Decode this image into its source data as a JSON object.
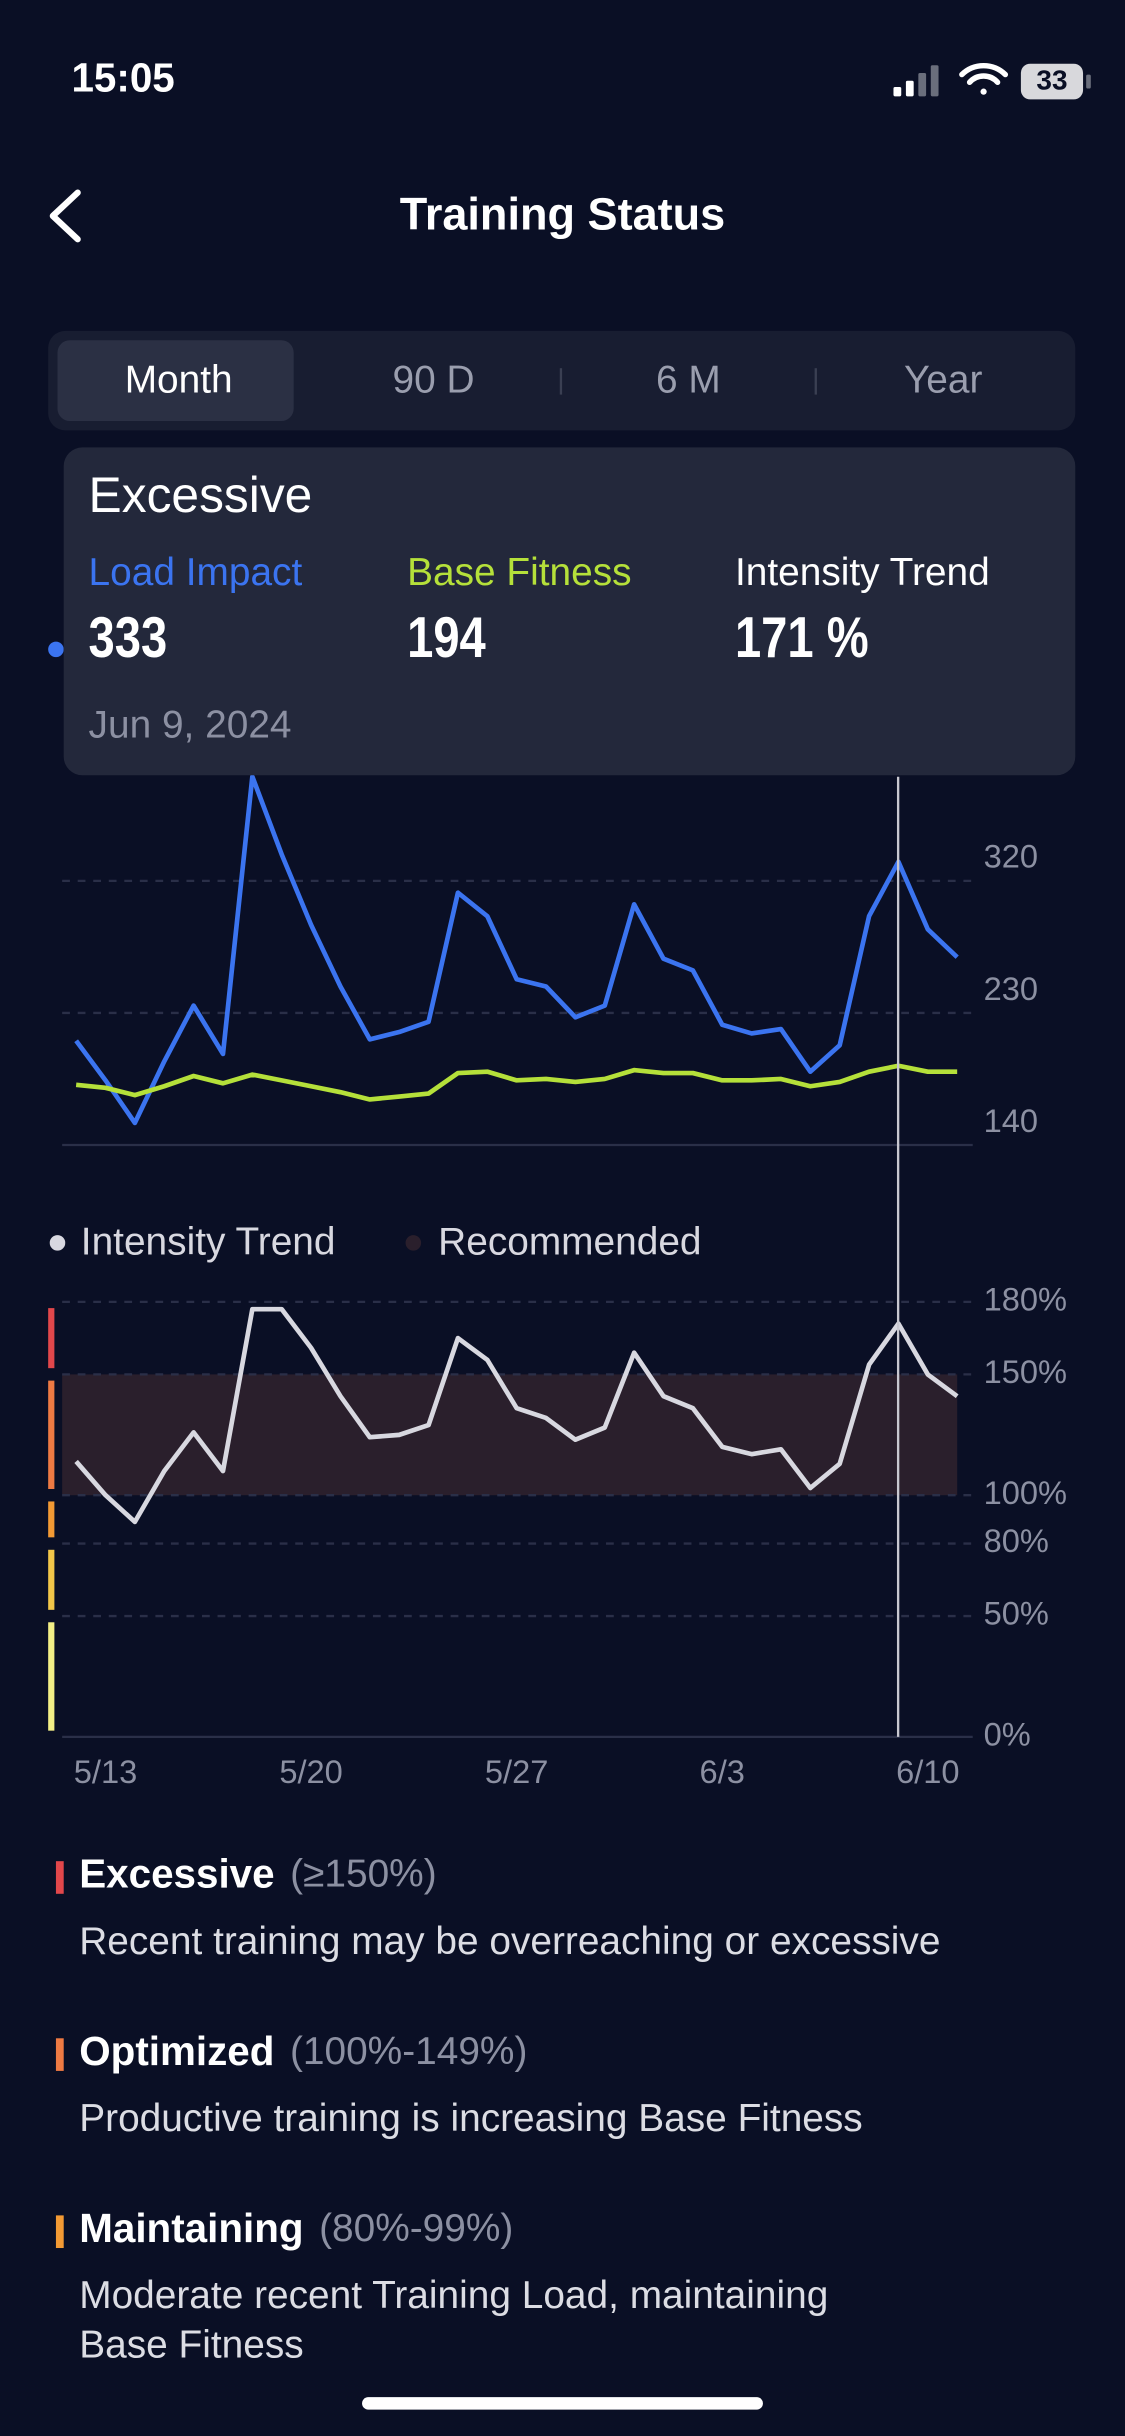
{
  "status_bar": {
    "time": "15:05",
    "battery": "33"
  },
  "header": {
    "title": "Training Status"
  },
  "tabs": {
    "items": [
      "Month",
      "90 D",
      "6 M",
      "Year"
    ],
    "active": "Month"
  },
  "tooltip": {
    "title": "Excessive",
    "intensity": "171 %",
    "date": "Jun 9, 2024"
  },
  "load_chart": {
    "type": "line",
    "ylim": [
      140,
      410
    ],
    "yticks": [
      140,
      230,
      320
    ],
    "grid": true,
    "series": [
      {
        "name": "Load Impact",
        "color": "#3b74f0",
        "values": [
          211,
          184,
          155,
          197,
          235,
          202,
          391,
          338,
          290,
          248,
          212,
          217,
          224,
          312,
          296,
          253,
          248,
          227,
          235,
          304,
          267,
          259,
          222,
          216,
          219,
          190,
          208,
          296,
          333,
          287,
          268
        ]
      },
      {
        "name": "Base Fitness",
        "color": "#b5e03a",
        "values": [
          181,
          179,
          174,
          180,
          187,
          182,
          188,
          184,
          180,
          176,
          171,
          173,
          175,
          189,
          190,
          184,
          185,
          183,
          185,
          191,
          189,
          189,
          184,
          184,
          185,
          180,
          183,
          190,
          194,
          190,
          190
        ]
      }
    ]
  },
  "intensity_chart": {
    "type": "line",
    "categories": [
      null,
      "5/13",
      null,
      null,
      null,
      null,
      null,
      null,
      "5/20",
      null,
      null,
      null,
      null,
      null,
      null,
      "5/27",
      null,
      null,
      null,
      null,
      null,
      null,
      "6/3",
      null,
      null,
      null,
      null,
      null,
      null,
      "6/10",
      null
    ],
    "ylim": [
      0,
      180
    ],
    "yticks": [
      {
        "value": 0,
        "label": "0%"
      },
      {
        "value": 50,
        "label": "50%"
      },
      {
        "value": 80,
        "label": "80%"
      },
      {
        "value": 100,
        "label": "100%"
      },
      {
        "value": 150,
        "label": "150%"
      },
      {
        "value": 180,
        "label": "180%"
      }
    ],
    "grid": true,
    "series": [
      {
        "name": "Intensity Trend",
        "color": "#d8d8e0",
        "values": [
          114,
          100,
          89,
          110,
          126,
          110,
          177,
          177,
          161,
          141,
          124,
          125,
          129,
          165,
          156,
          136,
          132,
          123,
          128,
          159,
          141,
          136,
          120,
          117,
          119,
          103,
          113,
          154,
          171,
          150,
          141
        ]
      }
    ],
    "recommended": {
      "name": "Recommended",
      "color": "#2a1f2c",
      "range": [
        100,
        150
      ]
    },
    "zones": [
      {
        "range": [
          150,
          180
        ],
        "color": "#e2474b"
      },
      {
        "range": [
          100,
          150
        ],
        "color": "#ee7a43"
      },
      {
        "range": [
          80,
          100
        ],
        "color": "#f39a34"
      },
      {
        "range": [
          50,
          80
        ],
        "color": "#f2c649"
      },
      {
        "range": [
          0,
          50
        ],
        "color": "#f3ef86"
      }
    ]
  },
  "descriptions": [
    {
      "title": "Excessive",
      "range": "(≥150%)",
      "color": "#e2474b",
      "text": [
        "Recent training may be overreaching or excessive"
      ]
    },
    {
      "title": "Optimized",
      "range": "(100%-149%)",
      "color": "#ee7a43",
      "text": [
        "Productive training is increasing Base Fitness"
      ]
    },
    {
      "title": "Maintaining",
      "range": "(80%-99%)",
      "color": "#f39a34",
      "text": [
        "Moderate recent Training Load, maintaining",
        "Base Fitness"
      ]
    }
  ]
}
